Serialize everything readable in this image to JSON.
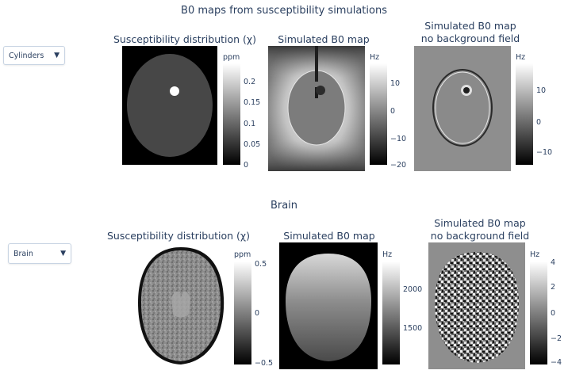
{
  "top": {
    "title": "B0 maps from susceptibility simulations",
    "dropdown": {
      "selected": "Cylinders"
    },
    "panels": [
      {
        "title": "Susceptibility distribution (χ)",
        "colorbar": {
          "unit": "ppm",
          "ticks": [
            "0.2",
            "0.15",
            "0.1",
            "0.05",
            "0"
          ]
        }
      },
      {
        "title": "Simulated B0 map",
        "colorbar": {
          "unit": "Hz",
          "ticks": [
            "10",
            "0",
            "−10",
            "−20"
          ]
        }
      },
      {
        "title_line1": "Simulated B0 map",
        "title_line2": "no background field",
        "colorbar": {
          "unit": "Hz",
          "ticks": [
            "10",
            "0",
            "−10"
          ]
        }
      }
    ]
  },
  "bottom": {
    "title": "Brain",
    "dropdown": {
      "selected": "Brain"
    },
    "panels": [
      {
        "title": "Susceptibility distribution (χ)",
        "colorbar": {
          "unit": "ppm",
          "ticks": [
            "0.5",
            "0",
            "−0.5"
          ]
        }
      },
      {
        "title": "Simulated B0 map",
        "colorbar": {
          "unit": "Hz",
          "ticks": [
            "2000",
            "1500"
          ]
        }
      },
      {
        "title_line1": "Simulated B0 map",
        "title_line2": "no background field",
        "colorbar": {
          "unit": "Hz",
          "ticks": [
            "4",
            "2",
            "0",
            "−2",
            "−4"
          ]
        }
      }
    ]
  },
  "icons": {
    "dropdown_arrow": "triangle-down-icon"
  }
}
